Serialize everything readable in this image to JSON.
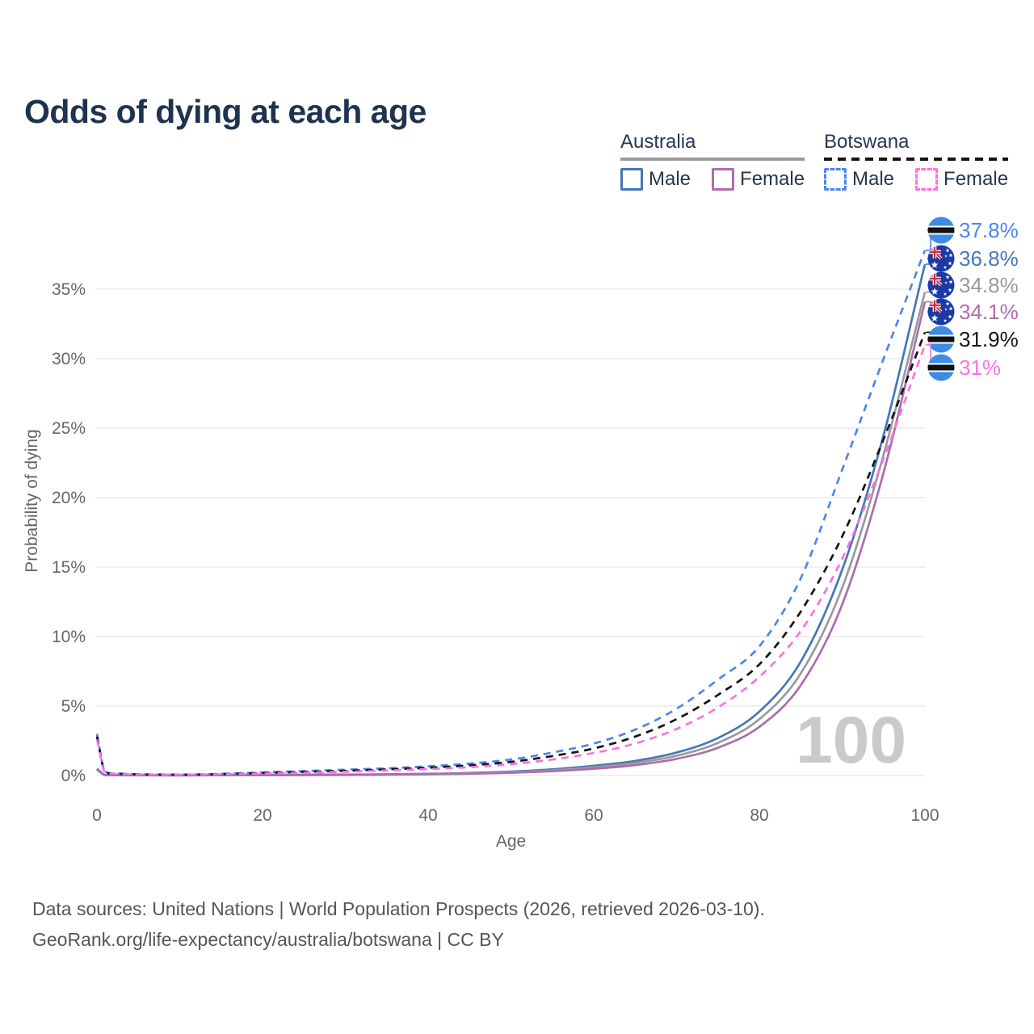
{
  "title": "Odds of dying at each age",
  "legend": {
    "groups": [
      {
        "label": "Australia",
        "line_style": "solid",
        "underline_color": "#9a9a9a",
        "items": [
          {
            "label": "Male",
            "color": "#4677b6",
            "style": "solid"
          },
          {
            "label": "Female",
            "color": "#ad6cae",
            "style": "solid"
          }
        ]
      },
      {
        "label": "Botswana",
        "line_style": "dashed",
        "underline_color": "#141414",
        "items": [
          {
            "label": "Male",
            "color": "#4d85ec",
            "style": "dashed"
          },
          {
            "label": "Female",
            "color": "#fb71e2",
            "style": "dashed"
          }
        ]
      }
    ]
  },
  "watermark": "100",
  "footer": {
    "line1": "Data sources: United Nations | World Population Prospects (2026, retrieved 2026-03-10).",
    "line2": "GeoRank.org/life-expectancy/australia/botswana | CC BY"
  },
  "chart_data": {
    "type": "line",
    "title": "Odds of dying at each age",
    "xlabel": "Age",
    "ylabel": "Probability of dying",
    "xlim": [
      0,
      100
    ],
    "ylim_percent": [
      0,
      38
    ],
    "x_ticks": [
      0,
      20,
      40,
      60,
      80,
      100
    ],
    "y_ticks_percent": [
      0,
      5,
      10,
      15,
      20,
      25,
      30,
      35
    ],
    "grid": "horizontal",
    "legend_position": "top-right",
    "x_ages": [
      0,
      1,
      2,
      5,
      10,
      15,
      20,
      25,
      30,
      35,
      40,
      45,
      50,
      55,
      60,
      65,
      70,
      75,
      80,
      85,
      90,
      95,
      100
    ],
    "series": [
      {
        "id": "botswana-male",
        "name": "Botswana Male",
        "country": "botswana",
        "sex": "male",
        "color": "#4d85ec",
        "dashed": true,
        "values_percent": [
          3.0,
          0.28,
          0.15,
          0.09,
          0.07,
          0.12,
          0.22,
          0.32,
          0.42,
          0.52,
          0.66,
          0.86,
          1.15,
          1.65,
          2.3,
          3.3,
          4.8,
          6.9,
          9.3,
          14.2,
          22.0,
          30.0,
          37.8
        ],
        "end_label": "37.8%",
        "end_value_percent": 37.8
      },
      {
        "id": "australia-male",
        "name": "Australia Male",
        "country": "australia",
        "sex": "male",
        "color": "#4677b6",
        "dashed": false,
        "values_percent": [
          0.5,
          0.04,
          0.03,
          0.02,
          0.01,
          0.03,
          0.05,
          0.06,
          0.07,
          0.09,
          0.12,
          0.18,
          0.28,
          0.44,
          0.7,
          1.05,
          1.65,
          2.7,
          4.6,
          8.2,
          14.8,
          24.5,
          36.8
        ],
        "end_label": "36.8%",
        "end_value_percent": 36.8
      },
      {
        "id": "australia-both",
        "name": "Australia Both sexes",
        "country": "australia",
        "sex": "both",
        "color": "#9a9a9a",
        "dashed": false,
        "values_percent": [
          0.46,
          0.035,
          0.025,
          0.015,
          0.01,
          0.025,
          0.035,
          0.045,
          0.055,
          0.075,
          0.1,
          0.15,
          0.24,
          0.37,
          0.59,
          0.9,
          1.42,
          2.35,
          4.05,
          7.35,
          13.5,
          23.1,
          34.8
        ],
        "end_label": "34.8%",
        "end_value_percent": 34.8
      },
      {
        "id": "australia-female",
        "name": "Australia Female",
        "country": "australia",
        "sex": "female",
        "color": "#ad6cae",
        "dashed": false,
        "values_percent": [
          0.42,
          0.03,
          0.02,
          0.01,
          0.01,
          0.02,
          0.02,
          0.03,
          0.04,
          0.06,
          0.09,
          0.13,
          0.2,
          0.31,
          0.48,
          0.75,
          1.2,
          2.0,
          3.5,
          6.5,
          12.3,
          21.8,
          34.1
        ],
        "end_label": "34.1%",
        "end_value_percent": 34.1
      },
      {
        "id": "botswana-both",
        "name": "Botswana Both sexes",
        "country": "botswana",
        "sex": "both",
        "color": "#141414",
        "dashed": true,
        "values_percent": [
          2.8,
          0.25,
          0.13,
          0.08,
          0.06,
          0.1,
          0.18,
          0.26,
          0.34,
          0.44,
          0.56,
          0.73,
          0.98,
          1.4,
          1.95,
          2.8,
          4.05,
          5.8,
          8.0,
          11.8,
          17.2,
          24.2,
          31.9
        ],
        "end_label": "31.9%",
        "end_value_percent": 31.9
      },
      {
        "id": "botswana-female",
        "name": "Botswana Female",
        "country": "botswana",
        "sex": "female",
        "color": "#fb71e2",
        "dashed": true,
        "values_percent": [
          2.6,
          0.22,
          0.12,
          0.07,
          0.06,
          0.09,
          0.14,
          0.2,
          0.27,
          0.36,
          0.46,
          0.6,
          0.82,
          1.15,
          1.62,
          2.3,
          3.35,
          4.9,
          7.1,
          10.4,
          15.6,
          22.8,
          31.0
        ],
        "end_label": "31%",
        "end_value_percent": 31.0
      }
    ]
  },
  "colors": {
    "title": "#1f334f",
    "axis_text": "#666666",
    "gridline": "#ebebeb",
    "watermark": "#cacaca",
    "footer_text": "#555555",
    "botswana_flag_blue": "#3e8be3",
    "australia_flag_blue": "#1c3ba5"
  }
}
